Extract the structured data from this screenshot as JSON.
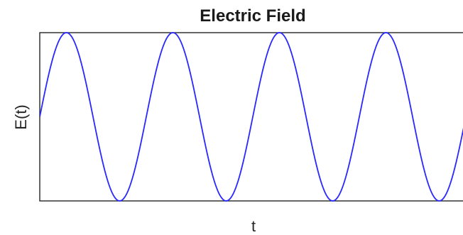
{
  "chart_data": {
    "type": "line",
    "title": "Electric Field",
    "xlabel": "t",
    "ylabel": "E(t)",
    "xlim": [
      0,
      4.0
    ],
    "ylim": [
      -1,
      1
    ],
    "grid": false,
    "legend": "none",
    "x_tick_labels": [],
    "y_tick_labels": [],
    "series": [
      {
        "color": "#2828ff",
        "function": "sine",
        "amplitude": 1,
        "period": 1,
        "phase_offset": 0,
        "samples": 400
      }
    ]
  }
}
